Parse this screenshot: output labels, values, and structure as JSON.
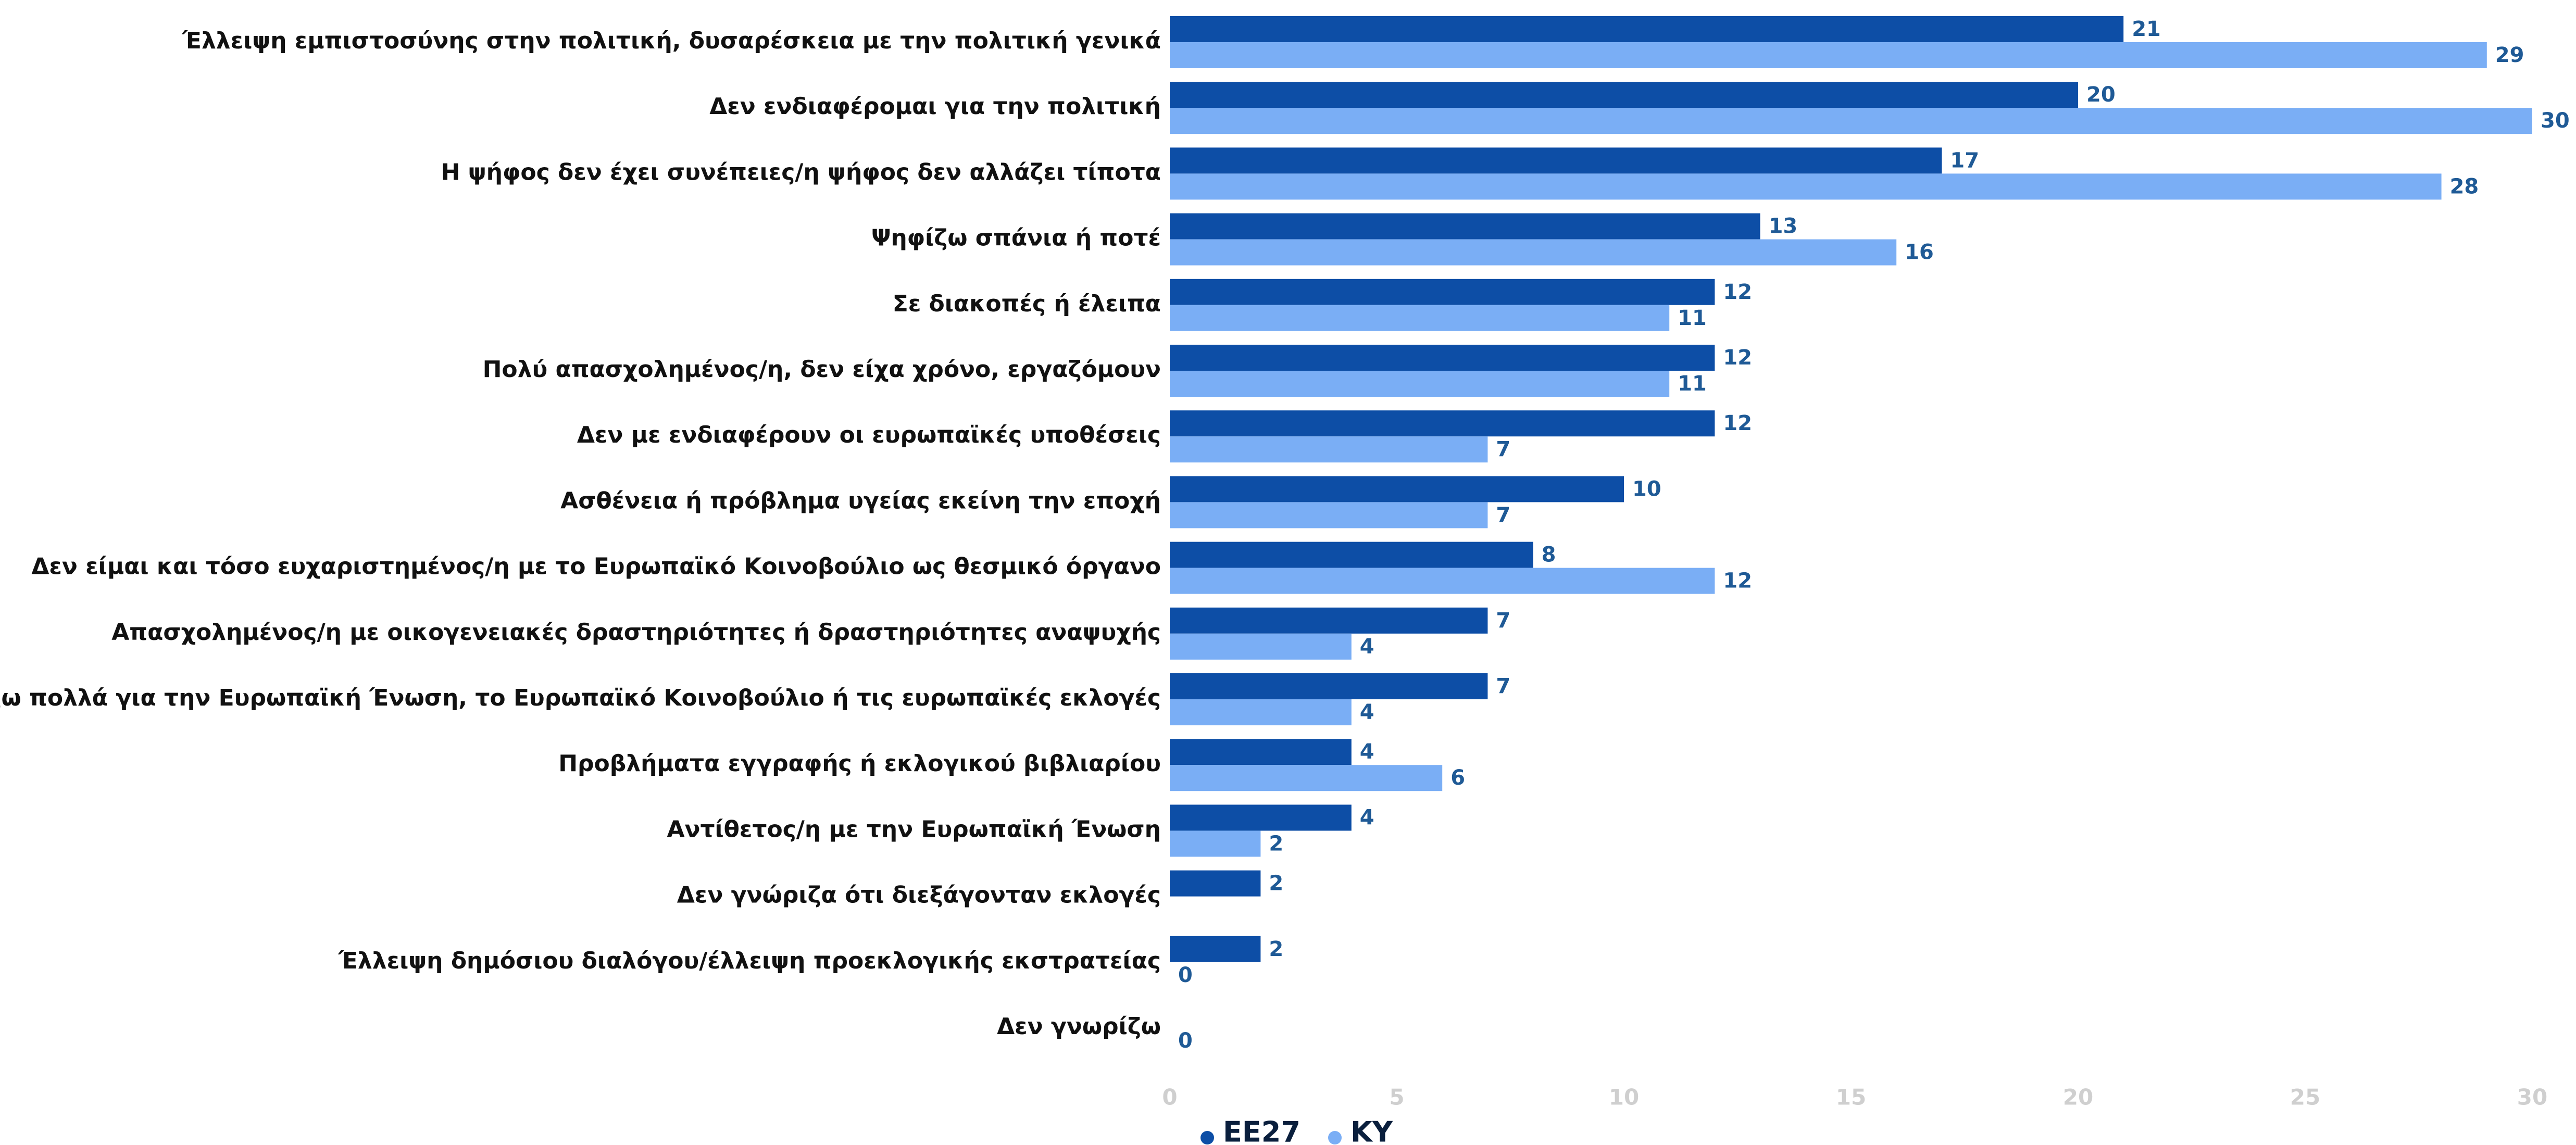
{
  "chart_data": {
    "type": "bar",
    "orientation": "horizontal",
    "title": "",
    "xlabel": "",
    "ylabel": "",
    "xlim": [
      0,
      30
    ],
    "xticks": [
      0,
      5,
      10,
      15,
      20,
      25,
      30
    ],
    "grid": false,
    "legend_position": "bottom",
    "categories": [
      "Έλλειψη εμπιστοσύνης στην πολιτική, δυσαρέσκεια με την πολιτική γενικά",
      "Δεν ενδιαφέρομαι για την πολιτική",
      "Η ψήφος δεν έχει συνέπειες/η ψήφος δεν αλλάζει τίποτα",
      "Ψηφίζω σπάνια ή ποτέ",
      "Σε διακοπές ή έλειπα",
      "Πολύ απασχολημένος/η, δεν είχα χρόνο, εργαζόμουν",
      "Δεν με ενδιαφέρουν οι ευρωπαϊκές υποθέσεις",
      "Ασθένεια ή πρόβλημα υγείας εκείνη την εποχή",
      "Δεν είμαι και τόσο ευχαριστημένος/η με το Ευρωπαϊκό Κοινοβούλιο ως θεσμικό όργανο",
      "Απασχολημένος/η με οικογενειακές δραστηριότητες ή δραστηριότητες αναψυχής",
      "Δεν γνωρίζω πολλά για την Ευρωπαϊκή Ένωση, το Ευρωπαϊκό Κοινοβούλιο ή τις ευρωπαϊκές εκλογές",
      "Προβλήματα εγγραφής ή εκλογικού βιβλιαρίου",
      "Αντίθετος/η με την Ευρωπαϊκή Ένωση",
      "Δεν γνώριζα ότι διεξάγονταν εκλογές",
      "Έλλειψη δημόσιου διαλόγου/έλλειψη προεκλογικής εκστρατείας",
      "Δεν γνωρίζω"
    ],
    "series": [
      {
        "name": "ΕΕ27",
        "color": "#0d4ea6",
        "values": [
          21,
          20,
          17,
          13,
          12,
          12,
          12,
          10,
          8,
          7,
          7,
          4,
          4,
          2,
          2,
          null
        ]
      },
      {
        "name": "ΚΥ",
        "color": "#7aaef5",
        "values": [
          29,
          30,
          28,
          16,
          11,
          11,
          7,
          7,
          12,
          4,
          4,
          6,
          2,
          null,
          0,
          0
        ]
      }
    ],
    "value_label_color": "#1f5a96",
    "tick_label_color": "#cfcfcf",
    "category_label_color": "#111111",
    "legend_text_color": "#0a1f3d"
  }
}
